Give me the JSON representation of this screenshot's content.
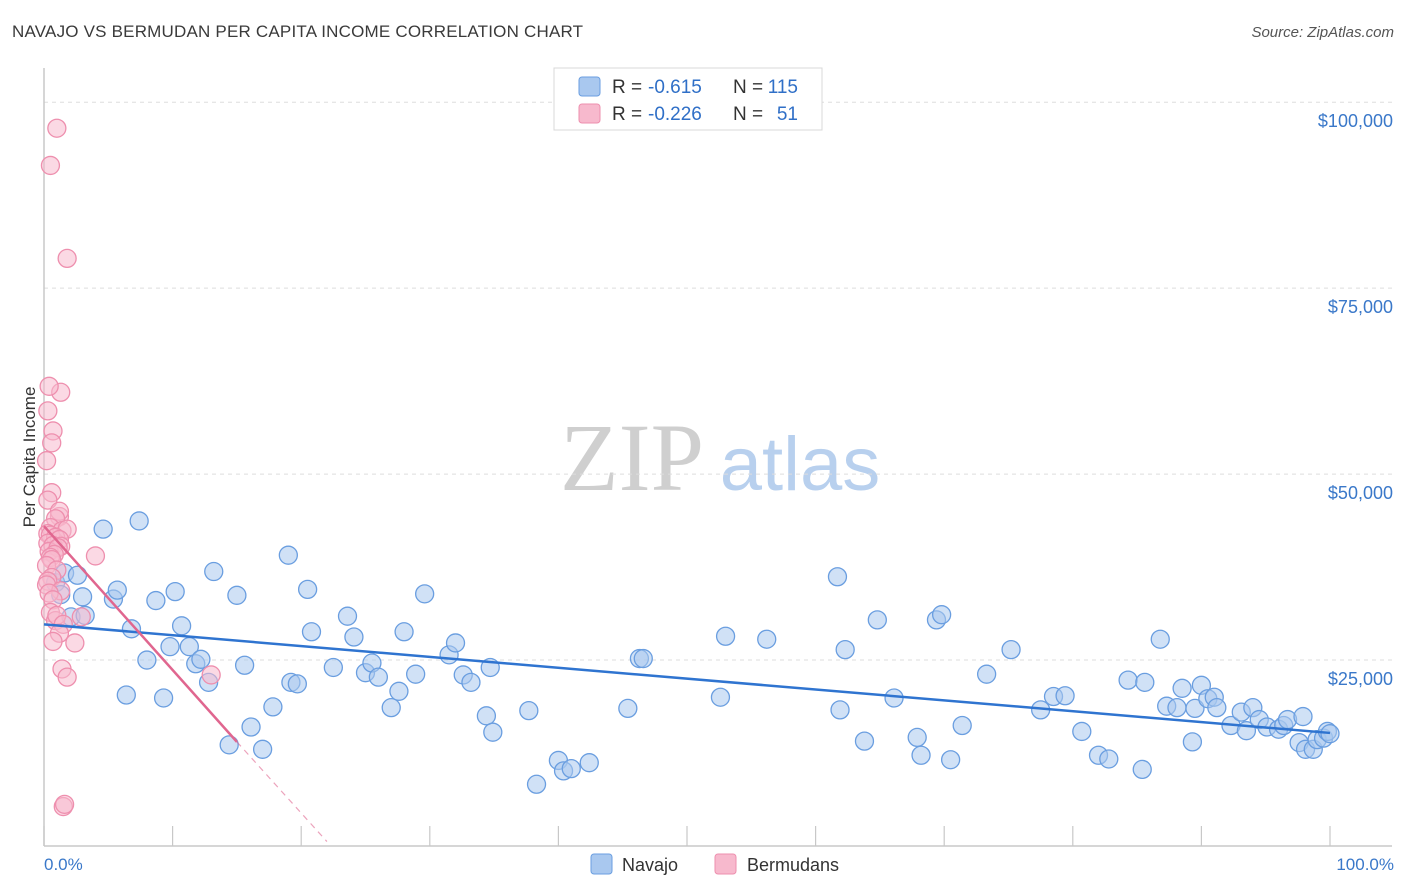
{
  "title": "NAVAJO VS BERMUDAN PER CAPITA INCOME CORRELATION CHART",
  "source": "Source: ZipAtlas.com",
  "watermark": {
    "zip": "ZIP",
    "atlas": "atlas"
  },
  "colors": {
    "navajo_fill": "#a9c8ef",
    "navajo_stroke": "#6a9ee0",
    "navajo_line": "#2f74d0",
    "bermudan_fill": "#f7b9cd",
    "bermudan_stroke": "#ee8fae",
    "bermudan_line": "#e0668f",
    "axis_text": "#3a78c9",
    "grid": "#dddddd"
  },
  "legend": {
    "rows": [
      {
        "r_label": "R =",
        "r_value": "-0.615",
        "n_label": "N =",
        "n_value": "115"
      },
      {
        "r_label": "R =",
        "r_value": "-0.226",
        "n_label": "N =",
        "n_value": "51"
      }
    ]
  },
  "bottom_legend": {
    "navajo": "Navajo",
    "bermudans": "Bermudans"
  },
  "chart_data": {
    "type": "scatter",
    "title": "NAVAJO VS BERMUDAN PER CAPITA INCOME CORRELATION CHART",
    "xlabel": "",
    "ylabel": "Per Capita Income",
    "xlim": [
      0,
      100
    ],
    "ylim": [
      0,
      105000
    ],
    "x_tick_labels": [
      "0.0%",
      "100.0%"
    ],
    "y_ticks": [
      {
        "value": 25000,
        "label": "$25,000"
      },
      {
        "value": 50000,
        "label": "$50,000"
      },
      {
        "value": 75000,
        "label": "$75,000"
      },
      {
        "value": 100000,
        "label": "$100,000"
      }
    ],
    "series": [
      {
        "name": "Navajo",
        "r": -0.615,
        "n": 115,
        "trend": {
          "x": [
            0,
            100
          ],
          "y": [
            29800,
            15200
          ]
        },
        "points": [
          [
            0.9,
            35400
          ],
          [
            1.3,
            33800
          ],
          [
            1.6,
            36700
          ],
          [
            2.1,
            30800
          ],
          [
            2.6,
            36400
          ],
          [
            3.0,
            33500
          ],
          [
            3.2,
            31000
          ],
          [
            4.6,
            42600
          ],
          [
            5.4,
            33200
          ],
          [
            5.7,
            34400
          ],
          [
            6.4,
            20300
          ],
          [
            6.8,
            29200
          ],
          [
            7.4,
            43700
          ],
          [
            8.0,
            25000
          ],
          [
            8.7,
            33000
          ],
          [
            9.3,
            19900
          ],
          [
            9.8,
            26800
          ],
          [
            10.2,
            34200
          ],
          [
            10.7,
            29600
          ],
          [
            11.3,
            26800
          ],
          [
            11.8,
            24500
          ],
          [
            12.2,
            25100
          ],
          [
            12.8,
            22000
          ],
          [
            13.2,
            36900
          ],
          [
            14.4,
            13600
          ],
          [
            15.0,
            33700
          ],
          [
            15.6,
            24300
          ],
          [
            16.1,
            16000
          ],
          [
            17.0,
            13000
          ],
          [
            17.8,
            18700
          ],
          [
            19.0,
            39100
          ],
          [
            19.2,
            22000
          ],
          [
            19.7,
            21800
          ],
          [
            20.5,
            34500
          ],
          [
            20.8,
            28800
          ],
          [
            22.5,
            24000
          ],
          [
            23.6,
            30900
          ],
          [
            24.1,
            28100
          ],
          [
            25.0,
            23300
          ],
          [
            25.5,
            24600
          ],
          [
            26.0,
            22700
          ],
          [
            27.0,
            18600
          ],
          [
            27.6,
            20800
          ],
          [
            28.0,
            28800
          ],
          [
            28.9,
            23100
          ],
          [
            29.6,
            33900
          ],
          [
            31.5,
            25700
          ],
          [
            32.0,
            27300
          ],
          [
            32.6,
            23000
          ],
          [
            33.2,
            22000
          ],
          [
            34.4,
            17500
          ],
          [
            34.7,
            24000
          ],
          [
            34.9,
            15300
          ],
          [
            37.7,
            18200
          ],
          [
            38.3,
            8300
          ],
          [
            40.0,
            11500
          ],
          [
            40.4,
            10100
          ],
          [
            41.0,
            10400
          ],
          [
            42.4,
            11200
          ],
          [
            45.4,
            18500
          ],
          [
            46.3,
            25200
          ],
          [
            46.6,
            25200
          ],
          [
            52.6,
            20000
          ],
          [
            53.0,
            28200
          ],
          [
            56.2,
            27800
          ],
          [
            61.7,
            36200
          ],
          [
            61.9,
            18300
          ],
          [
            62.3,
            26400
          ],
          [
            63.8,
            14100
          ],
          [
            64.8,
            30400
          ],
          [
            66.1,
            19900
          ],
          [
            67.9,
            14600
          ],
          [
            68.2,
            12200
          ],
          [
            69.4,
            30400
          ],
          [
            69.8,
            31100
          ],
          [
            70.5,
            11600
          ],
          [
            71.4,
            16200
          ],
          [
            73.3,
            23100
          ],
          [
            75.2,
            26400
          ],
          [
            77.5,
            18300
          ],
          [
            78.5,
            20100
          ],
          [
            79.4,
            20200
          ],
          [
            80.7,
            15400
          ],
          [
            82.0,
            12200
          ],
          [
            82.8,
            11700
          ],
          [
            84.3,
            22300
          ],
          [
            85.4,
            10300
          ],
          [
            85.6,
            22000
          ],
          [
            86.8,
            27800
          ],
          [
            87.3,
            18800
          ],
          [
            88.1,
            18600
          ],
          [
            88.5,
            21200
          ],
          [
            89.3,
            14000
          ],
          [
            89.5,
            18500
          ],
          [
            90.0,
            21600
          ],
          [
            90.5,
            19800
          ],
          [
            91.0,
            20000
          ],
          [
            91.2,
            18600
          ],
          [
            92.3,
            16200
          ],
          [
            93.1,
            18000
          ],
          [
            93.5,
            15500
          ],
          [
            94.0,
            18600
          ],
          [
            94.5,
            17000
          ],
          [
            95.1,
            16000
          ],
          [
            96.0,
            15700
          ],
          [
            96.4,
            16200
          ],
          [
            96.7,
            17000
          ],
          [
            97.6,
            13900
          ],
          [
            97.9,
            17400
          ],
          [
            98.1,
            13000
          ],
          [
            98.7,
            13000
          ],
          [
            99.0,
            14300
          ],
          [
            99.5,
            14500
          ],
          [
            99.8,
            15400
          ],
          [
            100.0,
            15100
          ]
        ]
      },
      {
        "name": "Bermudans",
        "r": -0.226,
        "n": 51,
        "trend": {
          "x": [
            0,
            15
          ],
          "y": [
            43000,
            14000
          ]
        },
        "trend_dashed": {
          "x": [
            15,
            22
          ],
          "y": [
            14000,
            600
          ]
        },
        "points": [
          [
            1.0,
            96500
          ],
          [
            0.5,
            91500
          ],
          [
            1.8,
            79000
          ],
          [
            1.3,
            61000
          ],
          [
            0.4,
            61800
          ],
          [
            0.3,
            58500
          ],
          [
            0.7,
            55800
          ],
          [
            0.6,
            54200
          ],
          [
            0.2,
            51800
          ],
          [
            0.6,
            47500
          ],
          [
            0.3,
            46500
          ],
          [
            1.2,
            44300
          ],
          [
            1.2,
            45000
          ],
          [
            0.9,
            44000
          ],
          [
            0.5,
            42800
          ],
          [
            0.3,
            42000
          ],
          [
            1.4,
            42400
          ],
          [
            1.8,
            42600
          ],
          [
            0.5,
            41800
          ],
          [
            0.9,
            41500
          ],
          [
            1.2,
            41200
          ],
          [
            0.3,
            40700
          ],
          [
            0.7,
            40400
          ],
          [
            1.3,
            40300
          ],
          [
            0.4,
            39600
          ],
          [
            1.1,
            40100
          ],
          [
            0.8,
            39200
          ],
          [
            0.5,
            38800
          ],
          [
            4.0,
            39000
          ],
          [
            0.6,
            38500
          ],
          [
            0.2,
            37700
          ],
          [
            1.0,
            37100
          ],
          [
            0.6,
            36100
          ],
          [
            0.3,
            35600
          ],
          [
            0.2,
            35100
          ],
          [
            1.3,
            34300
          ],
          [
            0.4,
            34000
          ],
          [
            0.7,
            33100
          ],
          [
            0.5,
            31400
          ],
          [
            0.9,
            30300
          ],
          [
            1.0,
            31000
          ],
          [
            1.5,
            29800
          ],
          [
            2.9,
            30800
          ],
          [
            1.2,
            28600
          ],
          [
            0.7,
            27500
          ],
          [
            2.4,
            27300
          ],
          [
            1.4,
            23800
          ],
          [
            1.8,
            22700
          ],
          [
            13.0,
            23000
          ],
          [
            1.5,
            5300
          ],
          [
            1.6,
            5600
          ]
        ]
      }
    ]
  }
}
